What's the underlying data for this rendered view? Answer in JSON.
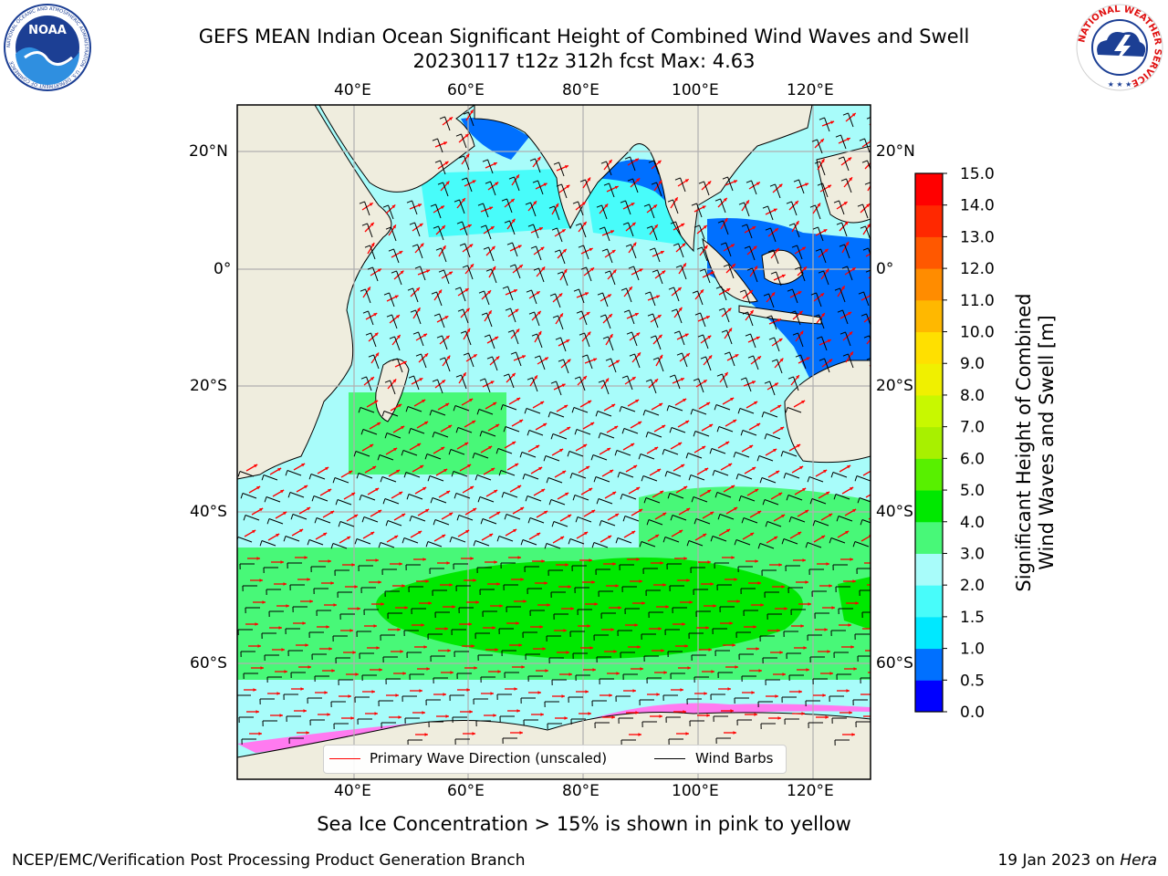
{
  "title": {
    "line1": "GEFS MEAN Indian Ocean Significant Height of Combined Wind Waves and Swell",
    "line2": "20230117 t12z 312h fcst   Max: 4.63"
  },
  "logos": {
    "left": {
      "text": "NOAA",
      "ring_text": "NATIONAL OCEANIC AND ATMOSPHERIC ADMINISTRATION · U.S. DEPARTMENT OF COMMERCE"
    },
    "right": {
      "ring_text": "NATIONAL WEATHER SERVICE"
    }
  },
  "map": {
    "lon_ticks": [
      "40°E",
      "60°E",
      "80°E",
      "100°E",
      "120°E"
    ],
    "lat_ticks": [
      "20°N",
      "0°",
      "20°S",
      "40°S",
      "60°S"
    ],
    "colors": {
      "land": "#efedde",
      "coast": "#000000",
      "grid": "#b0b0b0",
      "ocean_default": "#a8fcfa"
    },
    "wave_direction_color": "#ff0000",
    "wind_barb_color": "#000000"
  },
  "legend": {
    "wave_label": "Primary Wave Direction (unscaled)",
    "wind_label": "Wind Barbs"
  },
  "colorbar": {
    "label_line1": "Significant Height of Combined",
    "label_line2": "Wind Waves and Swell [m]",
    "ticks": [
      "0.0",
      "0.5",
      "1.0",
      "1.5",
      "2.0",
      "3.0",
      "4.0",
      "5.0",
      "6.0",
      "7.0",
      "8.0",
      "9.0",
      "10.0",
      "11.0",
      "12.0",
      "13.0",
      "14.0",
      "15.0"
    ],
    "colors": [
      "#0000ff",
      "#0070ff",
      "#00e8ff",
      "#48fcfa",
      "#a8fcfa",
      "#48f878",
      "#00e800",
      "#58f000",
      "#a8f000",
      "#c8f800",
      "#f0f000",
      "#ffe000",
      "#ffb800",
      "#ff8c00",
      "#ff5800",
      "#ff2800",
      "#ff0000"
    ]
  },
  "subtitle": "Sea Ice Concentration > 15% is shown in pink to yellow",
  "footer": {
    "left": "NCEP/EMC/Verification Post Processing Product Generation Branch",
    "right_date": "19 Jan 2023 on ",
    "right_host": "Hera"
  }
}
